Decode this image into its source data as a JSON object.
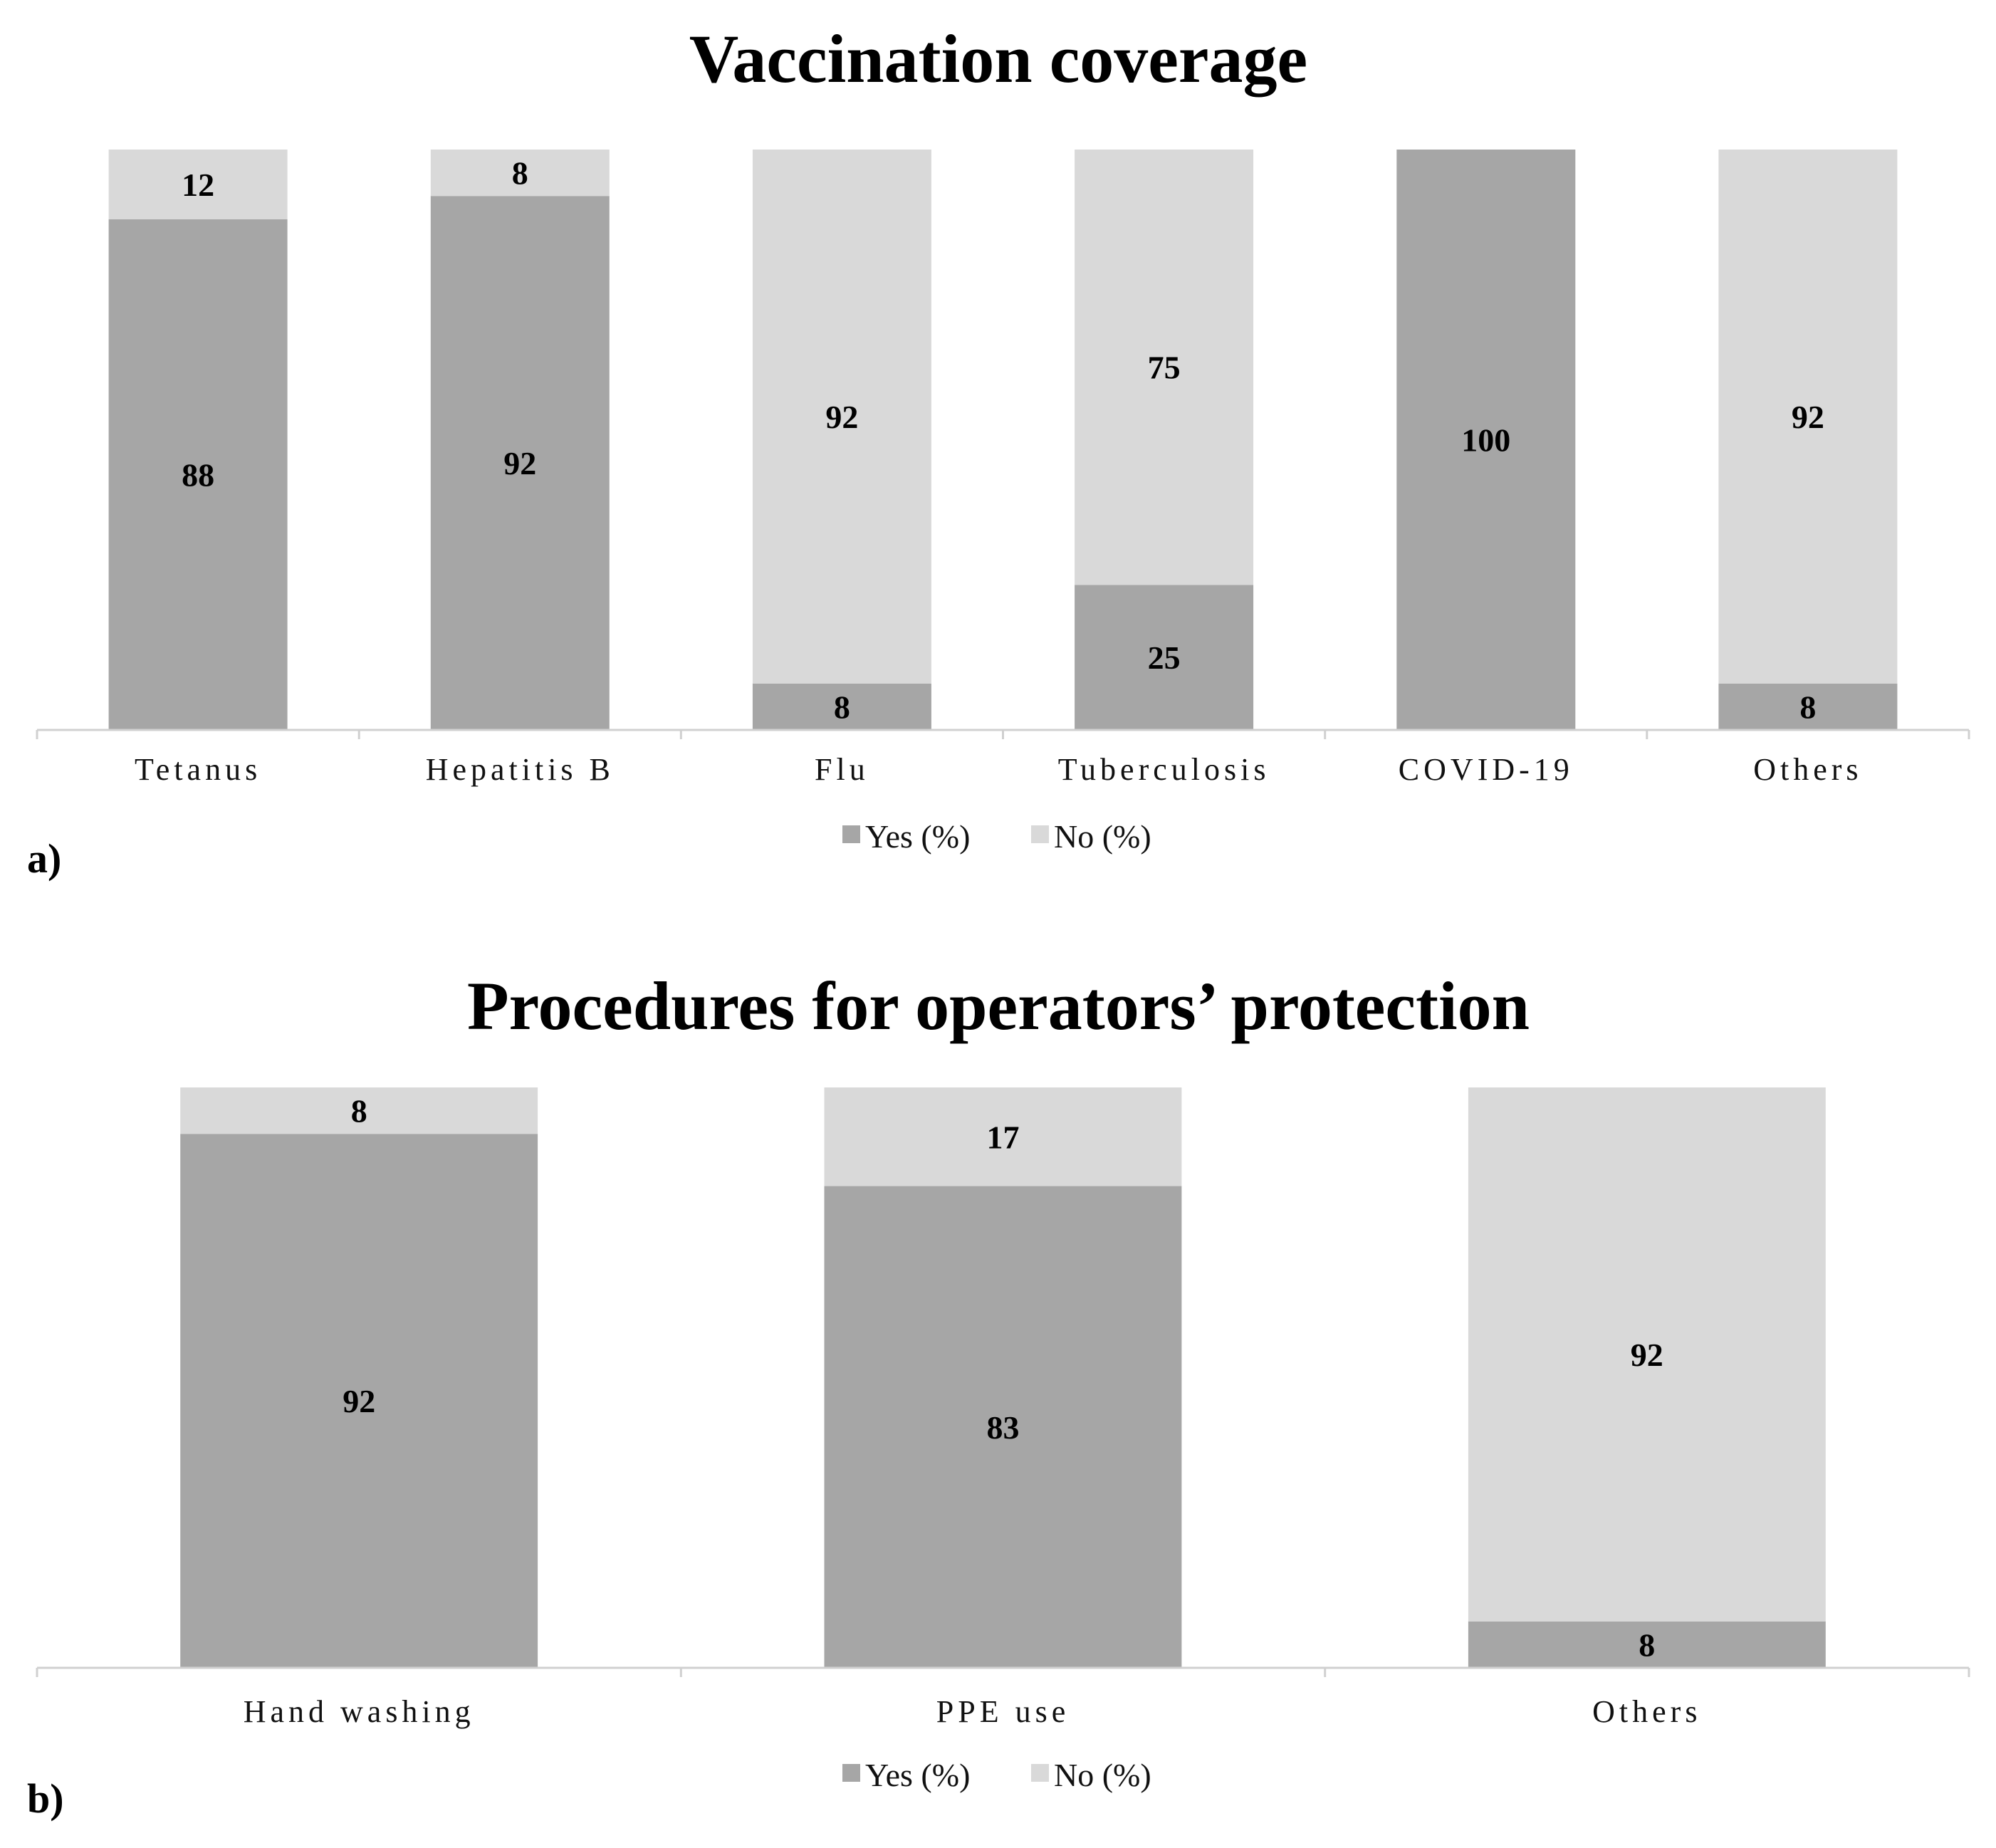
{
  "chart_data": [
    {
      "type": "bar",
      "stacked": true,
      "title": "Vaccination coverage",
      "panel_label": "a)",
      "categories": [
        "Tetanus",
        "Hepatitis B",
        "Flu",
        "Tuberculosis",
        "COVID-19",
        "Others"
      ],
      "series": [
        {
          "name": "Yes (%)",
          "values": [
            88,
            92,
            8,
            25,
            100,
            8
          ]
        },
        {
          "name": "No (%)",
          "values": [
            12,
            8,
            92,
            75,
            0,
            92
          ]
        }
      ],
      "ylim": [
        0,
        100
      ],
      "xlabel": "",
      "ylabel": "",
      "grid": false,
      "legend_position": "bottom"
    },
    {
      "type": "bar",
      "stacked": true,
      "title": "Procedures for operators’ protection",
      "panel_label": "b)",
      "categories": [
        "Hand washing",
        "PPE use",
        "Others"
      ],
      "series": [
        {
          "name": "Yes (%)",
          "values": [
            92,
            83,
            8
          ]
        },
        {
          "name": "No (%)",
          "values": [
            8,
            17,
            92
          ]
        }
      ],
      "ylim": [
        0,
        100
      ],
      "xlabel": "",
      "ylabel": "",
      "grid": false,
      "legend_position": "bottom"
    }
  ],
  "colors": {
    "yes": "#a6a6a6",
    "no": "#d9d9d9",
    "axis": "#d0d0d0",
    "text": "#000000"
  }
}
